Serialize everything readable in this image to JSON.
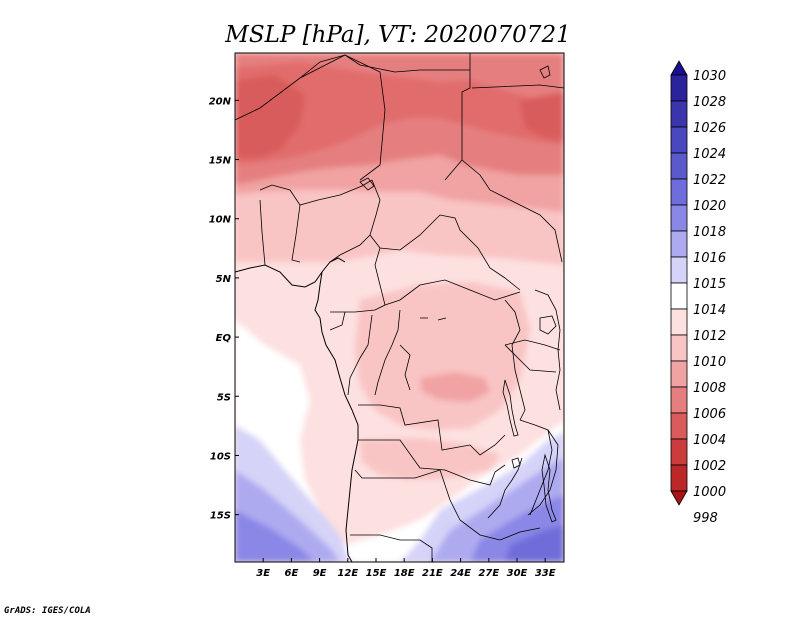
{
  "title": "MSLP [hPa], VT: 2020070721",
  "footer": "GrADS: IGES/COLA",
  "map": {
    "lon_labels": [
      "3E",
      "6E",
      "9E",
      "12E",
      "15E",
      "18E",
      "21E",
      "24E",
      "27E",
      "30E",
      "33E"
    ],
    "lat_labels": [
      "20N",
      "15N",
      "10N",
      "5N",
      "EQ",
      "5S",
      "10S",
      "15S"
    ],
    "lon_range": [
      0,
      35
    ],
    "lat_range": [
      -19,
      24
    ]
  },
  "colorbar": {
    "levels": [
      "1030",
      "1028",
      "1026",
      "1024",
      "1022",
      "1020",
      "1018",
      "1016",
      "1015",
      "1014",
      "1012",
      "1010",
      "1008",
      "1006",
      "1004",
      "1002",
      "1000",
      "998"
    ],
    "colors": [
      "#1a0f8c",
      "#2a239c",
      "#3a35ad",
      "#4a48be",
      "#5b5acd",
      "#6f6ddb",
      "#8a87e6",
      "#aeaaf0",
      "#d5d3f8",
      "#ffffff",
      "#fde0e0",
      "#f9c4c4",
      "#f1a3a3",
      "#e57f7f",
      "#d95b5b",
      "#cd3c3c",
      "#bc2727",
      "#a81414"
    ]
  }
}
